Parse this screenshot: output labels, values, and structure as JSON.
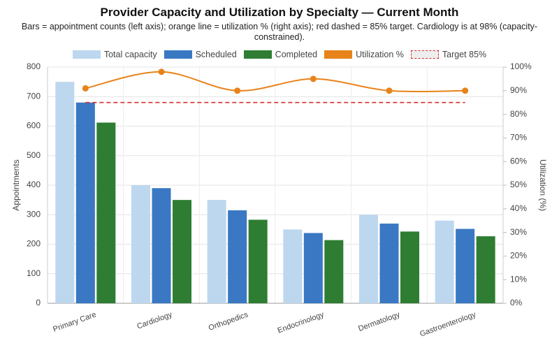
{
  "chart_data": {
    "type": "bar",
    "title": "Provider Capacity and Utilization by Specialty — Current Month",
    "subtitle": "Bars = appointment counts (left axis); orange line = utilization % (right axis); red dashed = 85% target. Cardiology is at 98% (capacity-constrained).",
    "y_label": "Appointments",
    "y2_label": "Utilization (%)",
    "categories": [
      "Primary Care",
      "Cardiology",
      "Orthopedics",
      "Endocrinology",
      "Dermatology",
      "Gastroenterology"
    ],
    "series": [
      {
        "name": "Total capacity",
        "type": "bar",
        "color": "#bdd7ee",
        "values": [
          750,
          400,
          350,
          250,
          300,
          280
        ]
      },
      {
        "name": "Scheduled",
        "type": "bar",
        "color": "#3a78c4",
        "values": [
          680,
          390,
          315,
          238,
          270,
          252
        ]
      },
      {
        "name": "Completed",
        "type": "bar",
        "color": "#2e7d32",
        "values": [
          612,
          350,
          283,
          214,
          243,
          227
        ]
      },
      {
        "name": "Utilization %",
        "type": "line",
        "axis": "y2",
        "color": "#e8831a",
        "values": [
          91,
          98,
          90,
          95,
          90,
          90
        ]
      },
      {
        "name": "Target 85%",
        "type": "line",
        "axis": "y2",
        "color": "#d32f2f",
        "dashed": true,
        "values": [
          85,
          85,
          85,
          85,
          85,
          85
        ]
      }
    ],
    "ylim": [
      0,
      800
    ],
    "yticks": [
      0,
      100,
      200,
      300,
      400,
      500,
      600,
      700,
      800
    ],
    "y2lim": [
      0,
      100
    ],
    "y2ticks": [
      {
        "value": 0,
        "label": "0%"
      },
      {
        "value": 10,
        "label": "10%"
      },
      {
        "value": 20,
        "label": "20%"
      },
      {
        "value": 30,
        "label": "30%"
      },
      {
        "value": 40,
        "label": "40%"
      },
      {
        "value": 50,
        "label": "50%"
      },
      {
        "value": 60,
        "label": "60%"
      },
      {
        "value": 70,
        "label": "70%"
      },
      {
        "value": 80,
        "label": "80%"
      },
      {
        "value": 90,
        "label": "90%"
      },
      {
        "value": 100,
        "label": "100%"
      }
    ],
    "grid": true
  }
}
